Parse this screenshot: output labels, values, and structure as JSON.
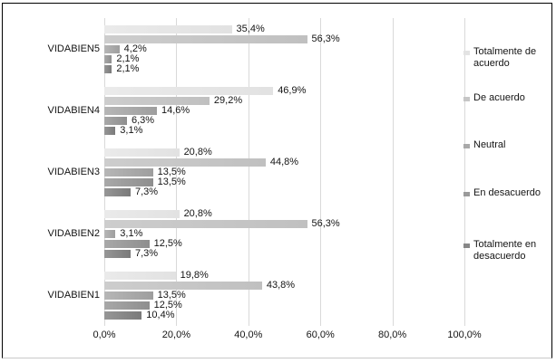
{
  "chart_data": {
    "type": "bar",
    "orientation": "horizontal",
    "title": "",
    "categories": [
      "VIDABIEN5",
      "VIDABIEN4",
      "VIDABIEN3",
      "VIDABIEN2",
      "VIDABIEN1"
    ],
    "series": [
      {
        "name": "Totalmente de acuerdo",
        "values": [
          35.4,
          46.9,
          20.8,
          20.8,
          19.8
        ],
        "value_labels": [
          "35,4%",
          "46,9%",
          "20,8%",
          "20,8%",
          "19,8%"
        ],
        "fill_start": "#eaeaea",
        "fill_end": "#e2e2e2",
        "marker": "#e3e3e3"
      },
      {
        "name": "De acuerdo",
        "values": [
          56.3,
          29.2,
          44.8,
          56.3,
          43.8
        ],
        "value_labels": [
          "56,3%",
          "29,2%",
          "44,8%",
          "56,3%",
          "43,8%"
        ],
        "fill_start": "#cdcdcd",
        "fill_end": "#c0c0c0",
        "marker": "#c6c6c6"
      },
      {
        "name": "Neutral",
        "values": [
          4.2,
          14.6,
          13.5,
          3.1,
          13.5
        ],
        "value_labels": [
          "4,2%",
          "14,6%",
          "13,5%",
          "3,1%",
          "13,5%"
        ],
        "fill_start": "#b6b6b6",
        "fill_end": "#9e9e9e",
        "marker": "#a9a9a9"
      },
      {
        "name": "En desacuerdo",
        "values": [
          2.1,
          6.3,
          13.5,
          12.5,
          12.5
        ],
        "value_labels": [
          "2,1%",
          "6,3%",
          "13,5%",
          "12,5%",
          "12,5%"
        ],
        "fill_start": "#a8a8a8",
        "fill_end": "#8e8e8e",
        "marker": "#9a9a9a"
      },
      {
        "name": "Totalmente en desacuerdo",
        "values": [
          2.1,
          3.1,
          7.3,
          7.3,
          10.4
        ],
        "value_labels": [
          "2,1%",
          "3,1%",
          "7,3%",
          "7,3%",
          "10,4%"
        ],
        "fill_start": "#969696",
        "fill_end": "#7a7a7a",
        "marker": "#878787"
      }
    ],
    "x_axis": {
      "min": 0,
      "max": 100,
      "tick_values": [
        0,
        20,
        40,
        60,
        80,
        100
      ],
      "tick_labels": [
        "0,0%",
        "20,0%",
        "40,0%",
        "60,0%",
        "80,0%",
        "100,0%"
      ]
    },
    "grid": true,
    "legend_position": "right"
  },
  "colors": {
    "grid": "#d9d9d9",
    "text": "#141414",
    "border": "#000000",
    "border_bottom": "#c9c9c9",
    "background": "#ffffff"
  }
}
